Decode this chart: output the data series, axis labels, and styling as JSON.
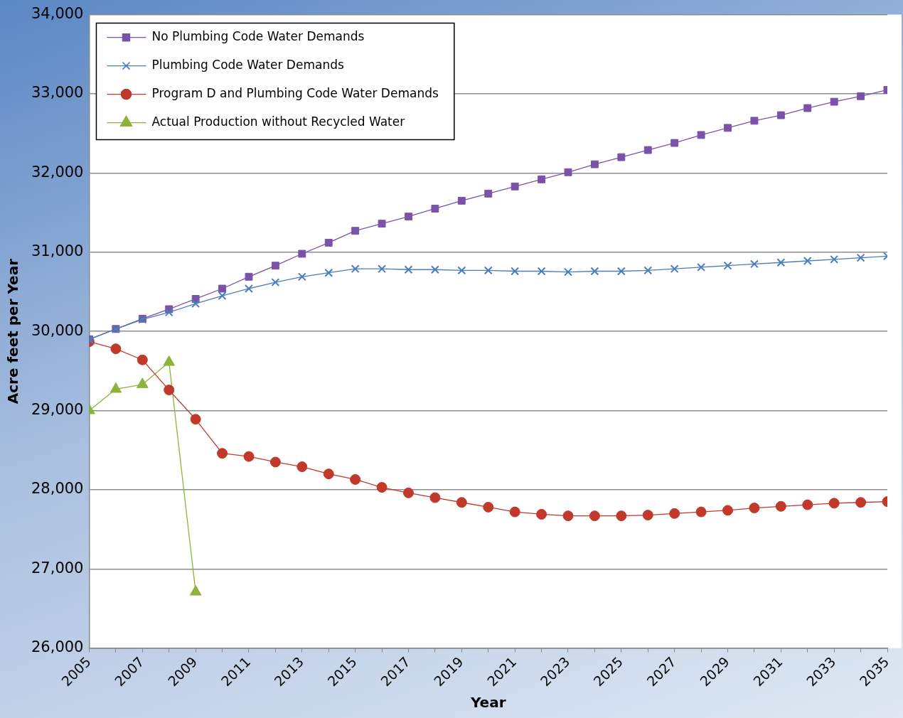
{
  "chart_data": {
    "type": "line",
    "xlabel": "Year",
    "ylabel": "Acre feet per Year",
    "x": [
      2005,
      2006,
      2007,
      2008,
      2009,
      2010,
      2011,
      2012,
      2013,
      2014,
      2015,
      2016,
      2017,
      2018,
      2019,
      2020,
      2021,
      2022,
      2023,
      2024,
      2025,
      2026,
      2027,
      2028,
      2029,
      2030,
      2031,
      2032,
      2033,
      2034,
      2035
    ],
    "series": [
      {
        "name": "No Plumbing Code Water Demands",
        "color": "#7a52a8",
        "marker": "square",
        "values": [
          29900,
          30030,
          30160,
          30280,
          30410,
          30540,
          30690,
          30830,
          30980,
          31120,
          31270,
          31360,
          31450,
          31550,
          31650,
          31740,
          31830,
          31920,
          32010,
          32110,
          32200,
          32290,
          32380,
          32480,
          32570,
          32660,
          32730,
          32820,
          32900,
          32970,
          33050
        ]
      },
      {
        "name": "Plumbing Code Water Demands",
        "color": "#4a7ebb",
        "marker": "cross",
        "values": [
          29900,
          30030,
          30150,
          30240,
          30350,
          30450,
          30540,
          30620,
          30690,
          30740,
          30790,
          30790,
          30780,
          30780,
          30770,
          30770,
          30760,
          30760,
          30750,
          30760,
          30760,
          30770,
          30790,
          30810,
          30830,
          30850,
          30870,
          30890,
          30910,
          30930,
          30950
        ]
      },
      {
        "name": "Program D and Plumbing Code Water Demands",
        "color": "#c0392b",
        "marker": "circle",
        "values": [
          29870,
          29780,
          29640,
          29260,
          28890,
          28460,
          28420,
          28350,
          28290,
          28200,
          28130,
          28030,
          27960,
          27900,
          27840,
          27780,
          27720,
          27690,
          27670,
          27670,
          27670,
          27680,
          27700,
          27720,
          27740,
          27770,
          27790,
          27810,
          27830,
          27840,
          27850
        ]
      },
      {
        "name": "Actual Production without Recycled Water",
        "color": "#8db33a",
        "marker": "triangle",
        "values": [
          29000,
          29270,
          29330,
          29610,
          26710,
          null,
          null,
          null,
          null,
          null,
          null,
          null,
          null,
          null,
          null,
          null,
          null,
          null,
          null,
          null,
          null,
          null,
          null,
          null,
          null,
          null,
          null,
          null,
          null,
          null,
          null
        ]
      }
    ],
    "xlim": [
      2005,
      2035
    ],
    "xticks": [
      2005,
      {
        "value": 2006,
        "label": null
      },
      2007,
      {
        "value": 2008,
        "label": null
      },
      2009,
      {
        "value": 2010,
        "label": null
      },
      2011,
      {
        "value": 2012,
        "label": null
      },
      2013,
      {
        "value": 2014,
        "label": null
      },
      2015,
      {
        "value": 2016,
        "label": null
      },
      2017,
      {
        "value": 2018,
        "label": null
      },
      2019,
      {
        "value": 2020,
        "label": null
      },
      2021,
      {
        "value": 2022,
        "label": null
      },
      2023,
      {
        "value": 2024,
        "label": null
      },
      2025,
      {
        "value": 2026,
        "label": null
      },
      2027,
      {
        "value": 2028,
        "label": null
      },
      2029,
      {
        "value": 2030,
        "label": null
      },
      2031,
      {
        "value": 2032,
        "label": null
      },
      2033,
      {
        "value": 2034,
        "label": null
      },
      2035
    ],
    "ylim": [
      26000,
      34000
    ],
    "yticks": [
      {
        "value": 26000,
        "label": "26,000"
      },
      {
        "value": 27000,
        "label": "27,000"
      },
      {
        "value": 28000,
        "label": "28,000"
      },
      {
        "value": 29000,
        "label": "29,000"
      },
      {
        "value": 30000,
        "label": "30,000"
      },
      {
        "value": 31000,
        "label": "31,000"
      },
      {
        "value": 32000,
        "label": "32,000"
      },
      {
        "value": 33000,
        "label": "33,000"
      },
      {
        "value": 34000,
        "label": "34,000"
      }
    ],
    "grid": "y",
    "legend": "top left",
    "line_style": "solid"
  }
}
